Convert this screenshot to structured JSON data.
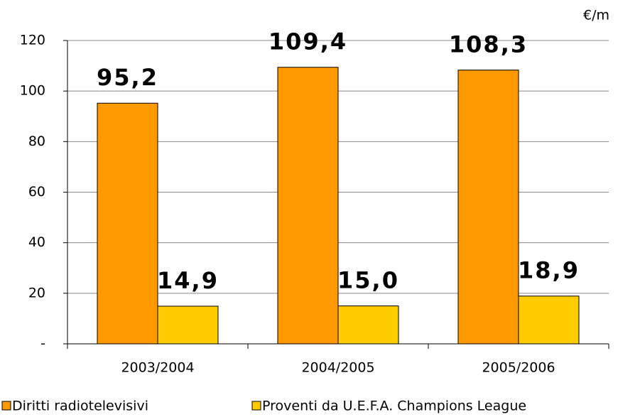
{
  "chart_data": {
    "type": "bar",
    "unit_label": "€/m",
    "categories": [
      "2003/2004",
      "2004/2005",
      "2005/2006"
    ],
    "series": [
      {
        "name": "Diritti radiotelevisivi",
        "color": "#ff9900",
        "values": [
          95.2,
          109.4,
          108.3
        ],
        "value_labels": [
          "95,2",
          "109,4",
          "108,3"
        ]
      },
      {
        "name": "Proventi da U.E.F.A. Champions League",
        "color": "#ffcc00",
        "values": [
          14.9,
          15.0,
          18.9
        ],
        "value_labels": [
          "14,9",
          "15,0",
          "18,9"
        ]
      }
    ],
    "ylim": [
      0,
      120
    ],
    "yticks": [
      {
        "value": 0,
        "label": "-"
      },
      20,
      40,
      60,
      80,
      100,
      120
    ],
    "grid": true,
    "legend": "bottom"
  }
}
